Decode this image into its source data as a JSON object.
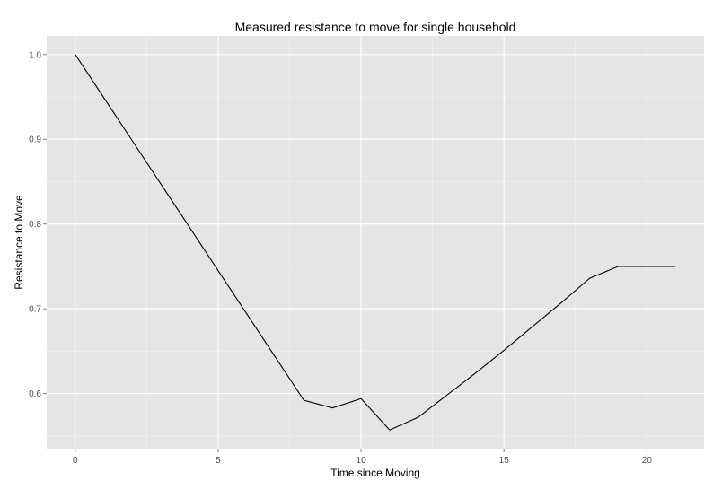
{
  "chart_data": {
    "type": "line",
    "title": "Measured resistance to move for single household",
    "xlabel": "Time since Moving",
    "ylabel": "Resistance to Move",
    "xlim": [
      -1,
      22
    ],
    "ylim": [
      0.535,
      1.022
    ],
    "x_ticks": [
      0,
      5,
      10,
      15,
      20
    ],
    "x_tick_labels": [
      "0",
      "5",
      "10",
      "15",
      "20"
    ],
    "y_ticks": [
      0.6,
      0.7,
      0.8,
      0.9,
      1.0
    ],
    "y_tick_labels": [
      "0.6",
      "0.7",
      "0.8",
      "0.9",
      "1.0"
    ],
    "grid": true,
    "series": [
      {
        "x": [
          0,
          1,
          2,
          3,
          4,
          5,
          6,
          7,
          8,
          9,
          10,
          11,
          12,
          13,
          14,
          15,
          16,
          17,
          18,
          19,
          20,
          21
        ],
        "y": [
          1.0,
          0.949,
          0.898,
          0.847,
          0.796,
          0.745,
          0.694,
          0.643,
          0.592,
          0.583,
          0.594,
          0.557,
          0.572,
          0.598,
          0.624,
          0.651,
          0.679,
          0.707,
          0.736,
          0.75,
          0.75,
          0.75
        ]
      }
    ],
    "colors": {
      "panel_background": "#e5e5e5",
      "grid_major": "#ffffff",
      "grid_minor": "#f2f2f2",
      "line": "#000000",
      "tick_label": "#4d4d4d"
    }
  }
}
